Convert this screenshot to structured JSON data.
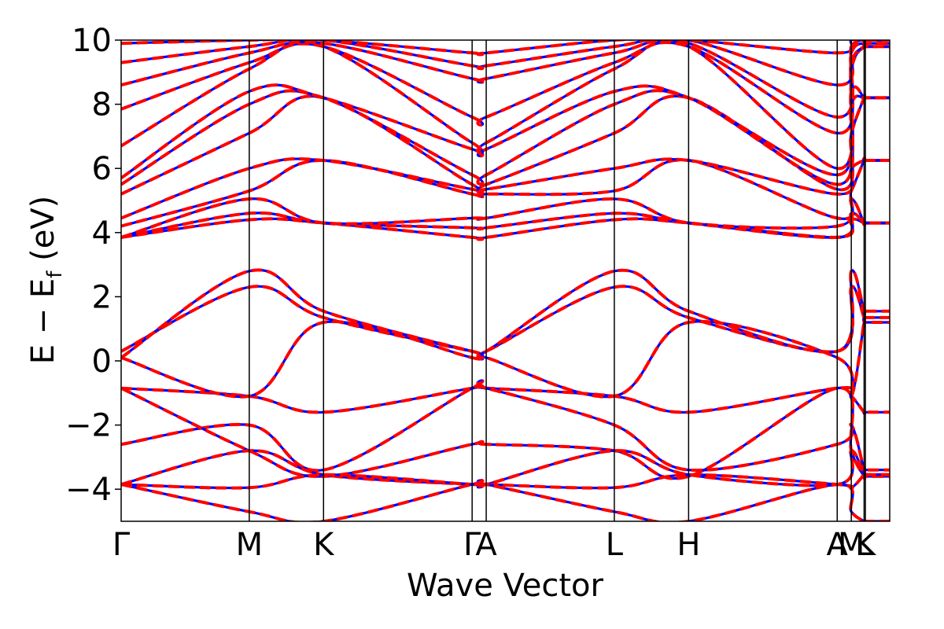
{
  "chart_data": {
    "type": "line",
    "xlabel": "Wave Vector",
    "ylabel": {
      "text_before": "E − E",
      "subscript": "f",
      "text_after": " (eV)"
    },
    "ylim": [
      -5,
      10
    ],
    "xlim": [
      0,
      6.0
    ],
    "yticks": [
      -4,
      -2,
      0,
      2,
      4,
      6,
      8,
      10
    ],
    "ytick_labels": [
      "−4",
      "−2",
      "0",
      "2",
      "4",
      "6",
      "8",
      "10"
    ],
    "grid": false,
    "legend": "none",
    "high_symmetry_points": [
      {
        "label": "Γ",
        "x": 0.0
      },
      {
        "label": "M",
        "x": 1.0
      },
      {
        "label": "K",
        "x": 1.58
      },
      {
        "label": "Γ",
        "x": 2.74
      },
      {
        "label": "A",
        "x": 2.85
      },
      {
        "label": "L",
        "x": 3.85
      },
      {
        "label": "H",
        "x": 4.43
      },
      {
        "label": "A",
        "x": 5.59
      },
      {
        "label": "M",
        "x": 5.7
      },
      {
        "label": "L",
        "x": 5.8
      },
      {
        "label": "K",
        "x": 5.81
      }
    ],
    "series_styles": [
      {
        "color": "#0000ff",
        "linestyle": "solid"
      },
      {
        "color": "#ff0000",
        "linestyle": "dashed"
      }
    ],
    "x": [
      0.0,
      1.0,
      1.58,
      2.74,
      2.85,
      3.85,
      4.43,
      5.59,
      5.7,
      5.8,
      5.81,
      6.0
    ],
    "bands": [
      [
        -0.85,
        -1.1,
        -1.6,
        -0.85,
        -0.85,
        -1.1,
        -1.6,
        -0.85,
        -1.1,
        -1.6,
        -1.6,
        -1.6
      ],
      [
        0.1,
        -1.1,
        1.2,
        0.1,
        0.1,
        -1.1,
        1.2,
        0.1,
        -1.1,
        1.2,
        1.2,
        1.2
      ],
      [
        0.3,
        2.3,
        1.35,
        0.3,
        0.3,
        2.3,
        1.35,
        0.3,
        2.3,
        1.35,
        1.35,
        1.35
      ],
      [
        0.1,
        2.8,
        1.55,
        0.3,
        0.3,
        2.8,
        1.55,
        0.3,
        2.8,
        1.55,
        1.55,
        1.55
      ],
      [
        -2.6,
        -2.0,
        -3.4,
        -0.85,
        -0.85,
        -2.0,
        -3.4,
        -2.6,
        -2.0,
        -3.4,
        -3.4,
        -3.4
      ],
      [
        -0.85,
        -2.8,
        -3.6,
        -2.6,
        -2.6,
        -2.8,
        -3.6,
        -0.85,
        -2.8,
        -3.6,
        -3.6,
        -3.6
      ],
      [
        -3.85,
        -2.8,
        -3.55,
        -3.85,
        -3.85,
        -2.8,
        -3.55,
        -3.85,
        -2.8,
        -3.55,
        -3.55,
        -3.55
      ],
      [
        -3.85,
        -3.95,
        -3.55,
        -3.85,
        -3.85,
        -3.95,
        -3.55,
        -3.85,
        -3.95,
        -3.55,
        -3.55,
        -3.55
      ],
      [
        -3.85,
        -4.7,
        -5.0,
        -3.85,
        -3.85,
        -4.7,
        -5.0,
        -3.85,
        -4.7,
        -5.0,
        -5.0,
        -5.0
      ],
      [
        3.85,
        4.4,
        4.3,
        3.85,
        3.85,
        4.4,
        4.3,
        3.85,
        4.4,
        4.3,
        4.3,
        4.3
      ],
      [
        3.85,
        4.6,
        4.3,
        4.15,
        4.15,
        4.6,
        4.3,
        3.85,
        4.6,
        4.3,
        4.3,
        4.3
      ],
      [
        3.85,
        5.05,
        4.3,
        4.45,
        4.45,
        5.05,
        4.3,
        4.2,
        5.05,
        4.3,
        4.3,
        4.3
      ],
      [
        4.2,
        5.3,
        6.25,
        5.2,
        5.2,
        5.3,
        6.25,
        4.45,
        5.3,
        6.25,
        6.25,
        6.25
      ],
      [
        4.45,
        6.0,
        6.25,
        5.35,
        5.35,
        6.0,
        6.25,
        5.2,
        6.0,
        6.25,
        6.25,
        6.25
      ],
      [
        5.2,
        7.1,
        8.2,
        5.5,
        5.5,
        7.1,
        8.2,
        5.35,
        7.1,
        8.2,
        8.2,
        8.2
      ],
      [
        5.5,
        8.0,
        8.2,
        5.8,
        5.8,
        8.0,
        8.2,
        5.5,
        8.0,
        8.2,
        8.2,
        8.2
      ],
      [
        5.7,
        8.4,
        8.2,
        6.6,
        6.6,
        8.4,
        8.2,
        5.8,
        8.4,
        8.2,
        8.2,
        8.2
      ],
      [
        6.7,
        9.1,
        9.8,
        6.8,
        6.8,
        9.1,
        9.8,
        6.0,
        9.1,
        9.8,
        9.8,
        9.8
      ],
      [
        7.85,
        9.3,
        9.8,
        7.6,
        7.6,
        9.3,
        9.8,
        7.1,
        9.3,
        9.8,
        9.8,
        9.8
      ],
      [
        8.6,
        9.6,
        9.9,
        8.8,
        8.8,
        9.6,
        9.9,
        7.6,
        9.6,
        9.9,
        9.9,
        9.9
      ],
      [
        9.3,
        9.8,
        10.0,
        9.2,
        9.2,
        9.8,
        10.0,
        8.6,
        9.8,
        10.0,
        10.0,
        10.0
      ],
      [
        9.9,
        10.0,
        10.0,
        9.6,
        9.6,
        10.0,
        10.0,
        9.6,
        10.0,
        10.0,
        10.0,
        10.0
      ]
    ]
  }
}
